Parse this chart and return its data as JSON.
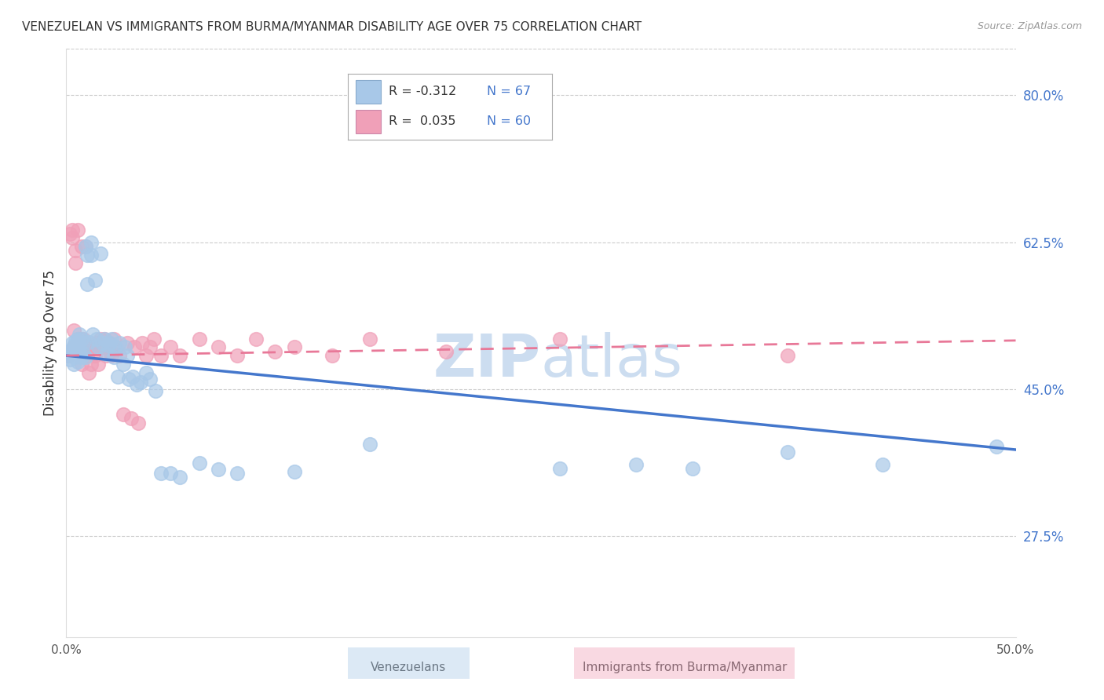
{
  "title": "VENEZUELAN VS IMMIGRANTS FROM BURMA/MYANMAR DISABILITY AGE OVER 75 CORRELATION CHART",
  "source": "Source: ZipAtlas.com",
  "ylabel": "Disability Age Over 75",
  "blue_R": "-0.312",
  "blue_N": "67",
  "pink_R": "0.035",
  "pink_N": "60",
  "blue_color": "#a8c8e8",
  "pink_color": "#f0a0b8",
  "blue_line_color": "#4477cc",
  "pink_line_color": "#e87898",
  "xlim": [
    0.0,
    0.5
  ],
  "ylim": [
    0.155,
    0.855
  ],
  "ytick_vals": [
    0.275,
    0.45,
    0.625,
    0.8
  ],
  "ytick_labels": [
    "27.5%",
    "45.0%",
    "62.5%",
    "80.0%"
  ],
  "xtick_vals": [
    0.0,
    0.1,
    0.2,
    0.3,
    0.4,
    0.5
  ],
  "xtick_labels": [
    "0.0%",
    "",
    "",
    "",
    "",
    "50.0%"
  ],
  "grid_color": "#cccccc",
  "background_color": "#ffffff",
  "watermark_color": "#ccddf0",
  "venezuelan_x": [
    0.001,
    0.002,
    0.002,
    0.003,
    0.003,
    0.003,
    0.004,
    0.004,
    0.004,
    0.005,
    0.005,
    0.005,
    0.006,
    0.006,
    0.006,
    0.007,
    0.007,
    0.008,
    0.008,
    0.009,
    0.009,
    0.01,
    0.01,
    0.011,
    0.011,
    0.012,
    0.013,
    0.013,
    0.014,
    0.015,
    0.016,
    0.017,
    0.018,
    0.019,
    0.02,
    0.021,
    0.022,
    0.023,
    0.024,
    0.025,
    0.026,
    0.027,
    0.028,
    0.03,
    0.031,
    0.032,
    0.033,
    0.035,
    0.037,
    0.039,
    0.042,
    0.044,
    0.047,
    0.05,
    0.055,
    0.06,
    0.07,
    0.08,
    0.09,
    0.12,
    0.16,
    0.26,
    0.3,
    0.33,
    0.38,
    0.43,
    0.49
  ],
  "venezuelan_y": [
    0.49,
    0.495,
    0.485,
    0.49,
    0.498,
    0.505,
    0.48,
    0.492,
    0.502,
    0.488,
    0.496,
    0.508,
    0.483,
    0.495,
    0.51,
    0.5,
    0.515,
    0.488,
    0.51,
    0.492,
    0.505,
    0.488,
    0.62,
    0.575,
    0.61,
    0.506,
    0.625,
    0.61,
    0.515,
    0.58,
    0.51,
    0.5,
    0.612,
    0.505,
    0.51,
    0.492,
    0.502,
    0.505,
    0.51,
    0.488,
    0.5,
    0.465,
    0.505,
    0.48,
    0.5,
    0.49,
    0.462,
    0.465,
    0.456,
    0.458,
    0.47,
    0.462,
    0.448,
    0.35,
    0.35,
    0.345,
    0.362,
    0.355,
    0.35,
    0.352,
    0.385,
    0.356,
    0.36,
    0.356,
    0.375,
    0.36,
    0.382
  ],
  "burma_x": [
    0.001,
    0.002,
    0.002,
    0.003,
    0.003,
    0.004,
    0.004,
    0.005,
    0.005,
    0.006,
    0.006,
    0.007,
    0.007,
    0.008,
    0.008,
    0.009,
    0.009,
    0.01,
    0.01,
    0.011,
    0.012,
    0.012,
    0.013,
    0.014,
    0.015,
    0.016,
    0.017,
    0.018,
    0.019,
    0.02,
    0.021,
    0.022,
    0.023,
    0.024,
    0.025,
    0.026,
    0.028,
    0.03,
    0.032,
    0.034,
    0.036,
    0.038,
    0.04,
    0.042,
    0.044,
    0.046,
    0.05,
    0.055,
    0.06,
    0.07,
    0.08,
    0.09,
    0.1,
    0.11,
    0.12,
    0.14,
    0.16,
    0.2,
    0.26,
    0.38
  ],
  "burma_y": [
    0.49,
    0.495,
    0.635,
    0.63,
    0.64,
    0.5,
    0.52,
    0.6,
    0.615,
    0.51,
    0.64,
    0.51,
    0.505,
    0.48,
    0.62,
    0.495,
    0.51,
    0.5,
    0.62,
    0.49,
    0.495,
    0.47,
    0.48,
    0.5,
    0.49,
    0.505,
    0.48,
    0.51,
    0.5,
    0.51,
    0.49,
    0.505,
    0.495,
    0.49,
    0.51,
    0.498,
    0.49,
    0.42,
    0.505,
    0.415,
    0.5,
    0.41,
    0.505,
    0.49,
    0.5,
    0.51,
    0.49,
    0.5,
    0.49,
    0.51,
    0.5,
    0.49,
    0.51,
    0.495,
    0.5,
    0.49,
    0.51,
    0.495,
    0.51,
    0.49
  ]
}
